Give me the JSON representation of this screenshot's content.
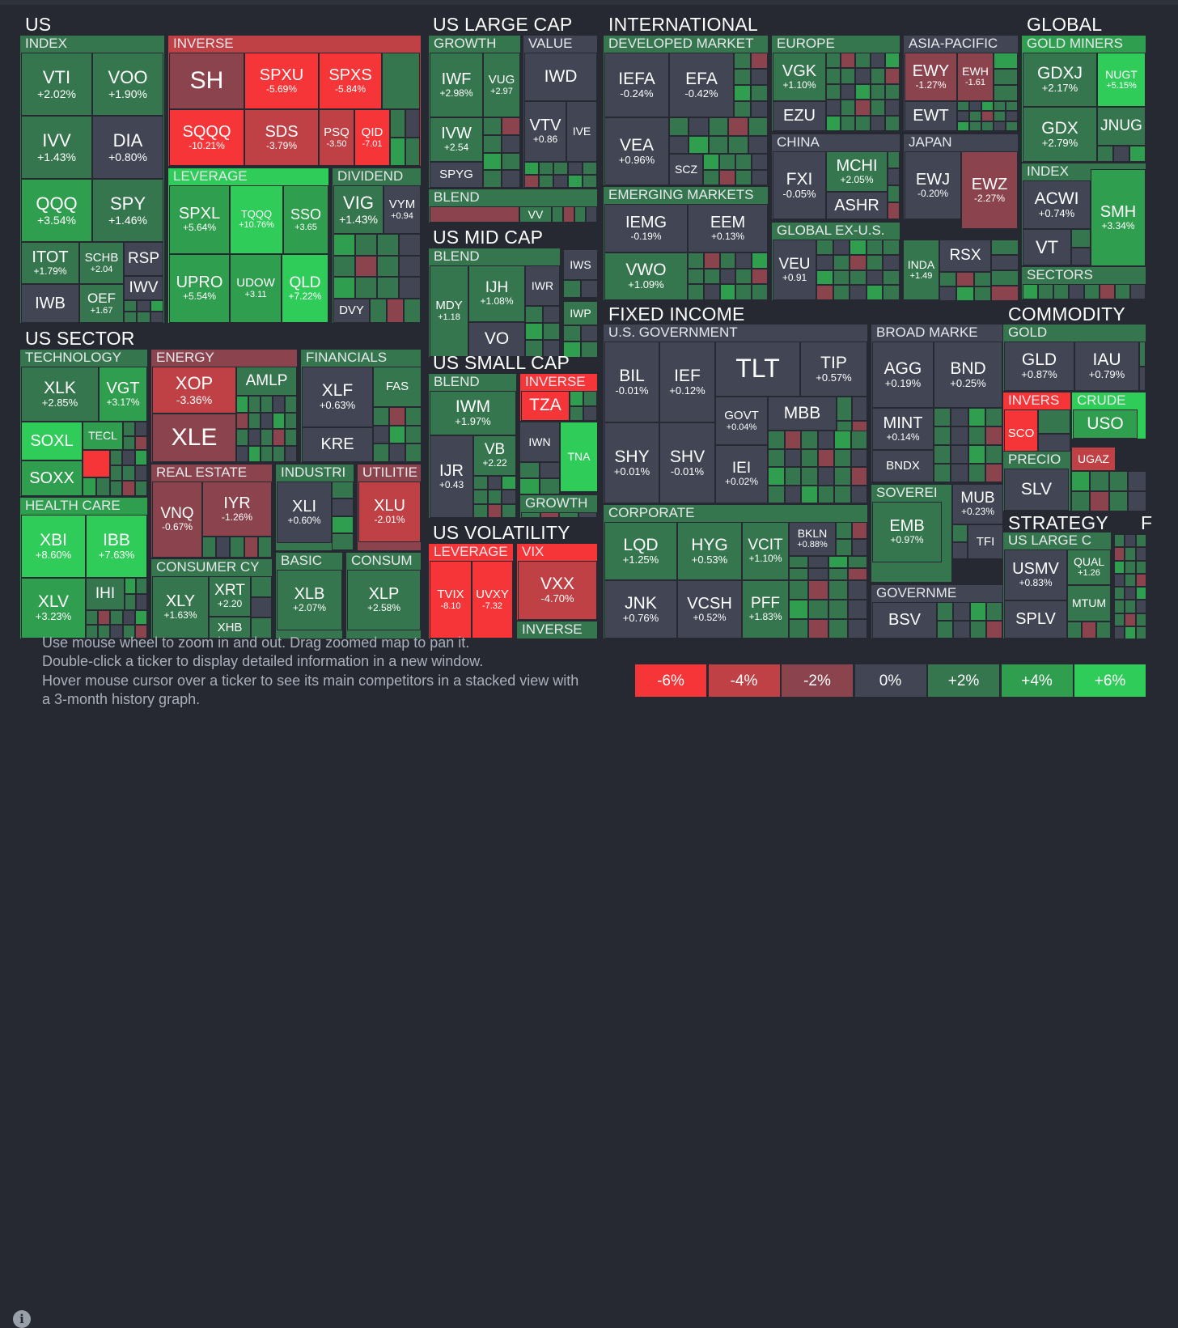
{
  "colors": {
    "neg6": "#f63538",
    "neg4": "#bf4045",
    "neg2": "#8b444e",
    "zero": "#414554",
    "pos2": "#35764e",
    "pos4": "#2f9e4f",
    "pos6": "#30cc5a"
  },
  "categories": [
    {
      "id": "us",
      "label": "US"
    },
    {
      "id": "us-large-cap",
      "label": "US LARGE CAP"
    },
    {
      "id": "international",
      "label": "INTERNATIONAL"
    },
    {
      "id": "global",
      "label": "GLOBAL"
    },
    {
      "id": "us-mid-cap",
      "label": "US MID CAP"
    },
    {
      "id": "us-sector",
      "label": "US SECTOR"
    },
    {
      "id": "fixed-income",
      "label": "FIXED INCOME"
    },
    {
      "id": "commodity",
      "label": "COMMODITY"
    },
    {
      "id": "us-small-cap",
      "label": "US SMALL CAP"
    },
    {
      "id": "us-volatility",
      "label": "US VOLATILITY"
    },
    {
      "id": "strategy",
      "label": "STRATEGY"
    },
    {
      "id": "f",
      "label": "F"
    }
  ],
  "groups": [
    {
      "id": "us-index",
      "label": "INDEX"
    },
    {
      "id": "us-inverse",
      "label": "INVERSE"
    },
    {
      "id": "us-leverage",
      "label": "LEVERAGE"
    },
    {
      "id": "us-dividend",
      "label": "DIVIDEND"
    },
    {
      "id": "lc-growth",
      "label": "GROWTH"
    },
    {
      "id": "lc-value",
      "label": "VALUE"
    },
    {
      "id": "lc-blend",
      "label": "BLEND"
    },
    {
      "id": "mc-blend",
      "label": "BLEND"
    },
    {
      "id": "intl-developed",
      "label": "DEVELOPED MARKET"
    },
    {
      "id": "intl-europe",
      "label": "EUROPE"
    },
    {
      "id": "intl-asia",
      "label": "ASIA-PACIFIC"
    },
    {
      "id": "intl-china",
      "label": "CHINA"
    },
    {
      "id": "intl-japan",
      "label": "JAPAN"
    },
    {
      "id": "intl-emerging",
      "label": "EMERGING MARKETS"
    },
    {
      "id": "intl-global-ex",
      "label": "GLOBAL EX-U.S."
    },
    {
      "id": "gl-gold-miners",
      "label": "GOLD MINERS"
    },
    {
      "id": "gl-index",
      "label": "INDEX"
    },
    {
      "id": "gl-sectors",
      "label": "SECTORS"
    },
    {
      "id": "sec-technology",
      "label": "TECHNOLOGY"
    },
    {
      "id": "sec-energy",
      "label": "ENERGY"
    },
    {
      "id": "sec-financials",
      "label": "FINANCIALS"
    },
    {
      "id": "sec-real-estate",
      "label": "REAL ESTATE"
    },
    {
      "id": "sec-industrials",
      "label": "INDUSTRI"
    },
    {
      "id": "sec-utilities",
      "label": "UTILITIE"
    },
    {
      "id": "sec-health-care",
      "label": "HEALTH CARE"
    },
    {
      "id": "sec-consumer-cy",
      "label": "CONSUMER CY"
    },
    {
      "id": "sec-basic",
      "label": "BASIC"
    },
    {
      "id": "sec-consum",
      "label": "CONSUM"
    },
    {
      "id": "sc-blend",
      "label": "BLEND"
    },
    {
      "id": "sc-inverse",
      "label": "INVERSE"
    },
    {
      "id": "sc-growth",
      "label": "GROWTH"
    },
    {
      "id": "vol-leverage",
      "label": "LEVERAGE"
    },
    {
      "id": "vol-vix",
      "label": "VIX"
    },
    {
      "id": "vol-inverse",
      "label": "INVERSE"
    },
    {
      "id": "fi-us-government",
      "label": "U.S. GOVERNMENT"
    },
    {
      "id": "fi-broad",
      "label": "BROAD MARKE"
    },
    {
      "id": "fi-sovereign",
      "label": "SOVEREI"
    },
    {
      "id": "fi-corporate",
      "label": "CORPORATE"
    },
    {
      "id": "fi-governme",
      "label": "GOVERNME"
    },
    {
      "id": "cm-gold",
      "label": "GOLD"
    },
    {
      "id": "cm-invers",
      "label": "INVERS"
    },
    {
      "id": "cm-crude",
      "label": "CRUDE"
    },
    {
      "id": "cm-precio",
      "label": "PRECIO"
    },
    {
      "id": "st-us-large",
      "label": "US LARGE C"
    }
  ],
  "tickers": [
    {
      "s": "VTI",
      "c": "+2.02%"
    },
    {
      "s": "VOO",
      "c": "+1.90%"
    },
    {
      "s": "IVV",
      "c": "+1.43%"
    },
    {
      "s": "DIA",
      "c": "+0.80%"
    },
    {
      "s": "QQQ",
      "c": "+3.54%"
    },
    {
      "s": "SPY",
      "c": "+1.46%"
    },
    {
      "s": "ITOT",
      "c": "+1.79%"
    },
    {
      "s": "SCHB",
      "c": "+2.04"
    },
    {
      "s": "RSP",
      "c": ""
    },
    {
      "s": "IWB",
      "c": ""
    },
    {
      "s": "OEF",
      "c": "+1.67"
    },
    {
      "s": "IWV",
      "c": ""
    },
    {
      "s": "SH",
      "c": ""
    },
    {
      "s": "SPXU",
      "c": "-5.69%"
    },
    {
      "s": "SPXS",
      "c": "-5.84%"
    },
    {
      "s": "SQQQ",
      "c": "-10.21%"
    },
    {
      "s": "SDS",
      "c": "-3.79%"
    },
    {
      "s": "PSQ",
      "c": "-3.50"
    },
    {
      "s": "QID",
      "c": "-7.01"
    },
    {
      "s": "SPXL",
      "c": "+5.64%"
    },
    {
      "s": "TQQQ",
      "c": "+10.76%"
    },
    {
      "s": "SSO",
      "c": "+3.65"
    },
    {
      "s": "UPRO",
      "c": "+5.54%"
    },
    {
      "s": "UDOW",
      "c": "+3.11"
    },
    {
      "s": "QLD",
      "c": "+7.22%"
    },
    {
      "s": "VIG",
      "c": "+1.43%"
    },
    {
      "s": "VYM",
      "c": "+0.94"
    },
    {
      "s": "DVY",
      "c": ""
    },
    {
      "s": "IWF",
      "c": "+2.98%"
    },
    {
      "s": "VUG",
      "c": "+2.97"
    },
    {
      "s": "IVW",
      "c": "+2.54"
    },
    {
      "s": "SPYG",
      "c": ""
    },
    {
      "s": "IWD",
      "c": ""
    },
    {
      "s": "VTV",
      "c": "+0.86"
    },
    {
      "s": "IVE",
      "c": ""
    },
    {
      "s": "VV",
      "c": ""
    },
    {
      "s": "MDY",
      "c": "+1.18"
    },
    {
      "s": "IJH",
      "c": "+1.08%"
    },
    {
      "s": "IWR",
      "c": ""
    },
    {
      "s": "VO",
      "c": ""
    },
    {
      "s": "IWS",
      "c": ""
    },
    {
      "s": "IWP",
      "c": ""
    },
    {
      "s": "IEFA",
      "c": "-0.24%"
    },
    {
      "s": "EFA",
      "c": "-0.42%"
    },
    {
      "s": "VEA",
      "c": "+0.96%"
    },
    {
      "s": "SCZ",
      "c": ""
    },
    {
      "s": "VGK",
      "c": "+1.10%"
    },
    {
      "s": "EZU",
      "c": ""
    },
    {
      "s": "EWY",
      "c": "-1.27%"
    },
    {
      "s": "EWH",
      "c": "-1.61"
    },
    {
      "s": "EWT",
      "c": ""
    },
    {
      "s": "FXI",
      "c": "-0.05%"
    },
    {
      "s": "MCHI",
      "c": "+2.05%"
    },
    {
      "s": "ASHR",
      "c": ""
    },
    {
      "s": "EWJ",
      "c": "-0.20%"
    },
    {
      "s": "EWZ",
      "c": "-2.27%"
    },
    {
      "s": "IEMG",
      "c": "-0.19%"
    },
    {
      "s": "EEM",
      "c": "+0.13%"
    },
    {
      "s": "VWO",
      "c": "+1.09%"
    },
    {
      "s": "VEU",
      "c": "+0.91"
    },
    {
      "s": "INDA",
      "c": "+1.49"
    },
    {
      "s": "RSX",
      "c": ""
    },
    {
      "s": "GDXJ",
      "c": "+2.17%"
    },
    {
      "s": "NUGT",
      "c": "+5.15%"
    },
    {
      "s": "GDX",
      "c": "+2.79%"
    },
    {
      "s": "JNUG",
      "c": ""
    },
    {
      "s": "ACWI",
      "c": "+0.74%"
    },
    {
      "s": "SMH",
      "c": "+3.34%"
    },
    {
      "s": "VT",
      "c": ""
    },
    {
      "s": "XLK",
      "c": "+2.85%"
    },
    {
      "s": "VGT",
      "c": "+3.17%"
    },
    {
      "s": "SOXL",
      "c": ""
    },
    {
      "s": "TECL",
      "c": ""
    },
    {
      "s": "SOXX",
      "c": ""
    },
    {
      "s": "XOP",
      "c": "-3.36%"
    },
    {
      "s": "AMLP",
      "c": ""
    },
    {
      "s": "XLE",
      "c": ""
    },
    {
      "s": "XLF",
      "c": "+0.63%"
    },
    {
      "s": "FAS",
      "c": ""
    },
    {
      "s": "KRE",
      "c": ""
    },
    {
      "s": "VNQ",
      "c": "-0.67%"
    },
    {
      "s": "IYR",
      "c": "-1.26%"
    },
    {
      "s": "XLI",
      "c": "+0.60%"
    },
    {
      "s": "XLU",
      "c": "-2.01%"
    },
    {
      "s": "XBI",
      "c": "+8.60%"
    },
    {
      "s": "IBB",
      "c": "+7.63%"
    },
    {
      "s": "XLV",
      "c": "+3.23%"
    },
    {
      "s": "IHI",
      "c": ""
    },
    {
      "s": "XLY",
      "c": "+1.63%"
    },
    {
      "s": "XRT",
      "c": "+2.20"
    },
    {
      "s": "XHB",
      "c": ""
    },
    {
      "s": "XLB",
      "c": "+2.07%"
    },
    {
      "s": "XLP",
      "c": "+2.58%"
    },
    {
      "s": "IWM",
      "c": "+1.97%"
    },
    {
      "s": "IJR",
      "c": "+0.43"
    },
    {
      "s": "VB",
      "c": "+2.22"
    },
    {
      "s": "TZA",
      "c": ""
    },
    {
      "s": "IWN",
      "c": ""
    },
    {
      "s": "TNA",
      "c": ""
    },
    {
      "s": "TVIX",
      "c": "-8.10"
    },
    {
      "s": "UVXY",
      "c": "-7.32"
    },
    {
      "s": "VXX",
      "c": "-4.70%"
    },
    {
      "s": "BIL",
      "c": "-0.01%"
    },
    {
      "s": "IEF",
      "c": "+0.12%"
    },
    {
      "s": "TLT",
      "c": ""
    },
    {
      "s": "TIP",
      "c": "+0.57%"
    },
    {
      "s": "GOVT",
      "c": "+0.04%"
    },
    {
      "s": "MBB",
      "c": ""
    },
    {
      "s": "SHY",
      "c": "+0.01%"
    },
    {
      "s": "SHV",
      "c": "-0.01%"
    },
    {
      "s": "IEI",
      "c": "+0.02%"
    },
    {
      "s": "AGG",
      "c": "+0.19%"
    },
    {
      "s": "BND",
      "c": "+0.25%"
    },
    {
      "s": "MINT",
      "c": "+0.14%"
    },
    {
      "s": "BNDX",
      "c": ""
    },
    {
      "s": "EMB",
      "c": "+0.97%"
    },
    {
      "s": "MUB",
      "c": "+0.23%"
    },
    {
      "s": "TFI",
      "c": ""
    },
    {
      "s": "BSV",
      "c": ""
    },
    {
      "s": "LQD",
      "c": "+1.25%"
    },
    {
      "s": "HYG",
      "c": "+0.53%"
    },
    {
      "s": "VCIT",
      "c": "+1.10%"
    },
    {
      "s": "BKLN",
      "c": "+0.88%"
    },
    {
      "s": "JNK",
      "c": "+0.76%"
    },
    {
      "s": "VCSH",
      "c": "+0.52%"
    },
    {
      "s": "PFF",
      "c": "+1.83%"
    },
    {
      "s": "GLD",
      "c": "+0.87%"
    },
    {
      "s": "IAU",
      "c": "+0.79%"
    },
    {
      "s": "SCO",
      "c": ""
    },
    {
      "s": "USO",
      "c": ""
    },
    {
      "s": "SLV",
      "c": ""
    },
    {
      "s": "UGAZ",
      "c": ""
    },
    {
      "s": "USMV",
      "c": "+0.83%"
    },
    {
      "s": "QUAL",
      "c": "+1.26"
    },
    {
      "s": "MTUM",
      "c": ""
    },
    {
      "s": "SPLV",
      "c": ""
    }
  ],
  "help": [
    "Use mouse wheel to zoom in and out. Drag zoomed map to pan it.",
    "Double-click a ticker to display detailed information in a new window.",
    "Hover mouse cursor over a ticker to see its main competitors in a stacked view with",
    "a 3-month history graph."
  ],
  "info_icon": "info-icon",
  "legend": [
    {
      "label": "-6%",
      "color": "neg6"
    },
    {
      "label": "-4%",
      "color": "neg4"
    },
    {
      "label": "-2%",
      "color": "neg2"
    },
    {
      "label": "0%",
      "color": "zero"
    },
    {
      "label": "+2%",
      "color": "pos2"
    },
    {
      "label": "+4%",
      "color": "pos4"
    },
    {
      "label": "+6%",
      "color": "pos6"
    }
  ]
}
